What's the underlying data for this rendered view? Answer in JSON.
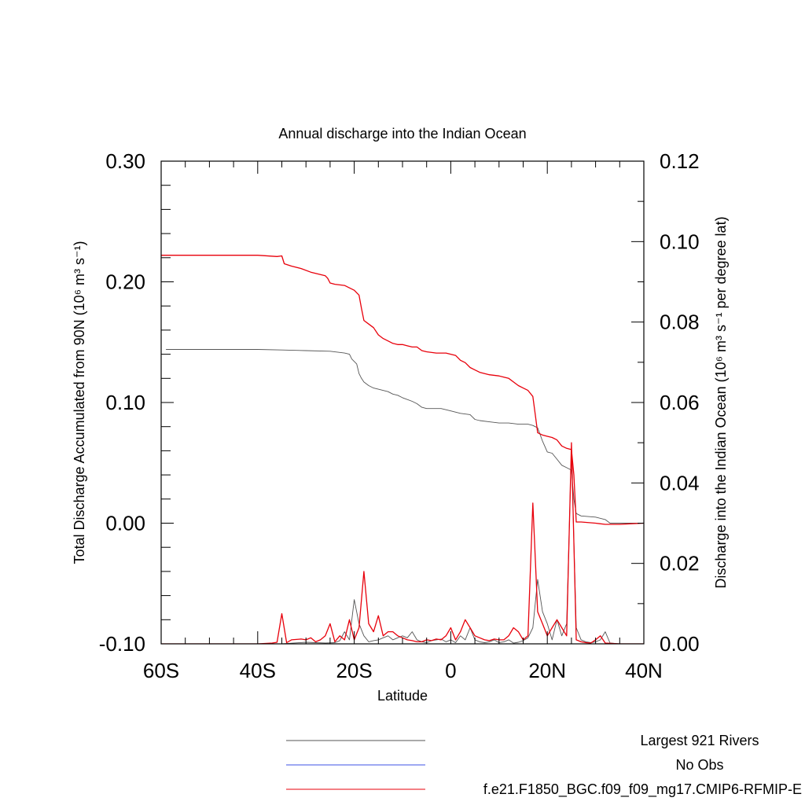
{
  "chart_data": {
    "type": "line",
    "title": "Annual discharge into the Indian Ocean",
    "xlabel": "Latitude",
    "ylabel_left": "Total Discharge Accumulated from 90N (10⁶ m³ s⁻¹)",
    "ylabel_right": "Discharge into the Indian Ocean (10⁶ m³ s⁻¹ per degree lat)",
    "xlim": [
      -60,
      40
    ],
    "ylim_left": [
      -0.1,
      0.3
    ],
    "ylim_right": [
      0.0,
      0.12
    ],
    "x_ticks": [
      {
        "value": -60,
        "label": "60S"
      },
      {
        "value": -40,
        "label": "40S"
      },
      {
        "value": -20,
        "label": "20S"
      },
      {
        "value": 0,
        "label": "0"
      },
      {
        "value": 20,
        "label": "20N"
      },
      {
        "value": 40,
        "label": "40N"
      }
    ],
    "y_ticks_left": [
      {
        "value": -0.1,
        "label": "-0.10"
      },
      {
        "value": 0.0,
        "label": "0.00"
      },
      {
        "value": 0.1,
        "label": "0.10"
      },
      {
        "value": 0.2,
        "label": "0.20"
      },
      {
        "value": 0.3,
        "label": "0.30"
      }
    ],
    "y_ticks_right": [
      {
        "value": 0.0,
        "label": "0.00"
      },
      {
        "value": 0.02,
        "label": "0.02"
      },
      {
        "value": 0.04,
        "label": "0.04"
      },
      {
        "value": 0.06,
        "label": "0.06"
      },
      {
        "value": 0.08,
        "label": "0.08"
      },
      {
        "value": 0.1,
        "label": "0.10"
      },
      {
        "value": 0.12,
        "label": "0.12"
      }
    ],
    "grid": false,
    "legend_position": "bottom-right",
    "series": [
      {
        "name": "Largest 921 Rivers",
        "color": "#555555",
        "axis": "left",
        "kind": "accumulated",
        "points": [
          [
            -59,
            0.144
          ],
          [
            -50,
            0.144
          ],
          [
            -40,
            0.144
          ],
          [
            -35,
            0.1435
          ],
          [
            -30,
            0.143
          ],
          [
            -25,
            0.1425
          ],
          [
            -22,
            0.141
          ],
          [
            -21,
            0.14
          ],
          [
            -20.5,
            0.136
          ],
          [
            -20,
            0.134
          ],
          [
            -19.5,
            0.132
          ],
          [
            -19,
            0.124
          ],
          [
            -18.5,
            0.12
          ],
          [
            -18,
            0.117
          ],
          [
            -17,
            0.114
          ],
          [
            -16,
            0.112
          ],
          [
            -15,
            0.111
          ],
          [
            -13,
            0.109
          ],
          [
            -12,
            0.107
          ],
          [
            -11,
            0.106
          ],
          [
            -10,
            0.104
          ],
          [
            -8,
            0.101
          ],
          [
            -7,
            0.099
          ],
          [
            -6,
            0.096
          ],
          [
            -5,
            0.095
          ],
          [
            -2,
            0.095
          ],
          [
            -1,
            0.094
          ],
          [
            0,
            0.093
          ],
          [
            2,
            0.091
          ],
          [
            4,
            0.09
          ],
          [
            4.5,
            0.088
          ],
          [
            5,
            0.086
          ],
          [
            6,
            0.085
          ],
          [
            8,
            0.084
          ],
          [
            10,
            0.083
          ],
          [
            12,
            0.083
          ],
          [
            14,
            0.082
          ],
          [
            16,
            0.082
          ],
          [
            17,
            0.081
          ],
          [
            18,
            0.079
          ],
          [
            19,
            0.068
          ],
          [
            20,
            0.059
          ],
          [
            21,
            0.058
          ],
          [
            22,
            0.053
          ],
          [
            23,
            0.048
          ],
          [
            24,
            0.046
          ],
          [
            25,
            0.044
          ],
          [
            25.5,
            0.02
          ],
          [
            26,
            0.008
          ],
          [
            27,
            0.006
          ],
          [
            30,
            0.005
          ],
          [
            32,
            0.003
          ],
          [
            33,
            0.0
          ],
          [
            40,
            0.0
          ]
        ]
      },
      {
        "name": "No Obs",
        "color": "#3c50e6",
        "axis": "left",
        "kind": "accumulated",
        "points": []
      },
      {
        "name": "f.e21.F1850_BGC.f09_f09_mg17.CMIP6-RFMIP-E",
        "color": "#e8000b",
        "axis": "left",
        "kind": "accumulated",
        "points": [
          [
            -60,
            0.222
          ],
          [
            -50,
            0.222
          ],
          [
            -40,
            0.222
          ],
          [
            -36,
            0.221
          ],
          [
            -35,
            0.2215
          ],
          [
            -34.5,
            0.215
          ],
          [
            -33,
            0.213
          ],
          [
            -31,
            0.211
          ],
          [
            -29,
            0.208
          ],
          [
            -27,
            0.206
          ],
          [
            -26,
            0.205
          ],
          [
            -25.5,
            0.203
          ],
          [
            -25,
            0.199
          ],
          [
            -24,
            0.198
          ],
          [
            -22,
            0.197
          ],
          [
            -21,
            0.195
          ],
          [
            -20,
            0.193
          ],
          [
            -19,
            0.189
          ],
          [
            -18.5,
            0.178
          ],
          [
            -18,
            0.168
          ],
          [
            -17,
            0.165
          ],
          [
            -16,
            0.162
          ],
          [
            -15,
            0.156
          ],
          [
            -14,
            0.153
          ],
          [
            -13,
            0.151
          ],
          [
            -12,
            0.149
          ],
          [
            -11,
            0.148
          ],
          [
            -10,
            0.148
          ],
          [
            -9,
            0.147
          ],
          [
            -8,
            0.146
          ],
          [
            -7,
            0.146
          ],
          [
            -6,
            0.143
          ],
          [
            -5,
            0.142
          ],
          [
            -3,
            0.141
          ],
          [
            -1,
            0.141
          ],
          [
            0,
            0.14
          ],
          [
            1,
            0.139
          ],
          [
            2,
            0.135
          ],
          [
            3,
            0.133
          ],
          [
            4,
            0.129
          ],
          [
            5,
            0.127
          ],
          [
            6,
            0.125
          ],
          [
            8,
            0.123
          ],
          [
            10,
            0.122
          ],
          [
            11,
            0.121
          ],
          [
            12,
            0.12
          ],
          [
            13,
            0.117
          ],
          [
            14,
            0.114
          ],
          [
            15,
            0.112
          ],
          [
            16,
            0.11
          ],
          [
            17,
            0.105
          ],
          [
            17.5,
            0.09
          ],
          [
            18,
            0.075
          ],
          [
            19,
            0.073
          ],
          [
            20,
            0.072
          ],
          [
            21,
            0.071
          ],
          [
            22,
            0.069
          ],
          [
            23,
            0.064
          ],
          [
            24,
            0.062
          ],
          [
            25,
            0.061
          ],
          [
            25.5,
            0.04
          ],
          [
            26,
            0.001
          ],
          [
            27,
            0.001
          ],
          [
            30,
            0.0
          ],
          [
            32,
            -0.001
          ],
          [
            35,
            -0.001
          ],
          [
            40,
            0.0
          ]
        ]
      },
      {
        "name": "Largest 921 Rivers",
        "color": "#555555",
        "axis": "right",
        "kind": "per-degree",
        "points": [
          [
            -60,
            0.0
          ],
          [
            -40,
            0.0
          ],
          [
            -35,
            0.0
          ],
          [
            -30,
            0.0004
          ],
          [
            -26,
            0.0002
          ],
          [
            -24,
            0.0003
          ],
          [
            -23,
            0.0008
          ],
          [
            -22,
            0.003
          ],
          [
            -21,
            0.001
          ],
          [
            -20,
            0.011
          ],
          [
            -19,
            0.005
          ],
          [
            -18,
            0.002
          ],
          [
            -17,
            0.0005
          ],
          [
            -16,
            0.0008
          ],
          [
            -15,
            0.001
          ],
          [
            -14,
            0.0015
          ],
          [
            -13,
            0.002
          ],
          [
            -12,
            0.001
          ],
          [
            -11,
            0.0015
          ],
          [
            -10,
            0.002
          ],
          [
            -9,
            0.0015
          ],
          [
            -8,
            0.003
          ],
          [
            -7,
            0.001
          ],
          [
            -6,
            0.0005
          ],
          [
            -5,
            0.0003
          ],
          [
            -4,
            0.0008
          ],
          [
            -3,
            0.001
          ],
          [
            -2,
            0.0012
          ],
          [
            -1,
            0.0005
          ],
          [
            0,
            0.001
          ],
          [
            1,
            0.0003
          ],
          [
            2,
            0.002
          ],
          [
            3,
            0.001
          ],
          [
            4,
            0.004
          ],
          [
            5,
            0.001
          ],
          [
            6,
            0.0005
          ],
          [
            7,
            0.0003
          ],
          [
            8,
            0.0005
          ],
          [
            9,
            0.001
          ],
          [
            10,
            0.0003
          ],
          [
            11,
            0.0005
          ],
          [
            12,
            0.001
          ],
          [
            13,
            0.0002
          ],
          [
            14,
            0.0004
          ],
          [
            15,
            0.0008
          ],
          [
            16,
            0.0015
          ],
          [
            17,
            0.004
          ],
          [
            18,
            0.016
          ],
          [
            19,
            0.008
          ],
          [
            20,
            0.005
          ],
          [
            21,
            0.001
          ],
          [
            22,
            0.006
          ],
          [
            23,
            0.002
          ],
          [
            24,
            0.005
          ],
          [
            25,
            0.048
          ],
          [
            26,
            0.004
          ],
          [
            27,
            0.001
          ],
          [
            28,
            0.0005
          ],
          [
            29,
            0.0003
          ],
          [
            30,
            0.0005
          ],
          [
            31,
            0.001
          ],
          [
            32,
            0.003
          ],
          [
            33,
            0.0002
          ],
          [
            35,
            0.0
          ],
          [
            40,
            0.0
          ]
        ]
      },
      {
        "name": "f.e21.F1850_BGC.f09_f09_mg17.CMIP6-RFMIP-E",
        "color": "#e8000b",
        "axis": "right",
        "kind": "per-degree",
        "points": [
          [
            -60,
            0.0
          ],
          [
            -40,
            0.0
          ],
          [
            -37,
            0.0002
          ],
          [
            -36,
            0.0004
          ],
          [
            -35,
            0.0075
          ],
          [
            -34,
            0.0003
          ],
          [
            -33,
            0.001
          ],
          [
            -31,
            0.0012
          ],
          [
            -30,
            0.001
          ],
          [
            -29,
            0.0015
          ],
          [
            -28,
            0.0005
          ],
          [
            -27,
            0.001
          ],
          [
            -26,
            0.002
          ],
          [
            -25,
            0.005
          ],
          [
            -24,
            0.0005
          ],
          [
            -23,
            0.002
          ],
          [
            -22,
            0.001
          ],
          [
            -21,
            0.006
          ],
          [
            -20,
            0.001
          ],
          [
            -19,
            0.004
          ],
          [
            -18,
            0.018
          ],
          [
            -17,
            0.005
          ],
          [
            -16,
            0.003
          ],
          [
            -15,
            0.007
          ],
          [
            -14,
            0.002
          ],
          [
            -13,
            0.003
          ],
          [
            -12,
            0.003
          ],
          [
            -11,
            0.002
          ],
          [
            -10,
            0.0015
          ],
          [
            -9,
            0.001
          ],
          [
            -8,
            0.0008
          ],
          [
            -7,
            0.0005
          ],
          [
            -6,
            0.0005
          ],
          [
            -5,
            0.001
          ],
          [
            -4,
            0.0008
          ],
          [
            -3,
            0.0012
          ],
          [
            -2,
            0.001
          ],
          [
            -1,
            0.002
          ],
          [
            0,
            0.004
          ],
          [
            1,
            0.001
          ],
          [
            2,
            0.003
          ],
          [
            3,
            0.006
          ],
          [
            4,
            0.004
          ],
          [
            5,
            0.002
          ],
          [
            6,
            0.0015
          ],
          [
            7,
            0.001
          ],
          [
            8,
            0.0008
          ],
          [
            9,
            0.0012
          ],
          [
            10,
            0.001
          ],
          [
            11,
            0.001
          ],
          [
            12,
            0.002
          ],
          [
            13,
            0.004
          ],
          [
            14,
            0.003
          ],
          [
            15,
            0.001
          ],
          [
            16,
            0.002
          ],
          [
            17,
            0.035
          ],
          [
            18,
            0.008
          ],
          [
            19,
            0.005
          ],
          [
            20,
            0.002
          ],
          [
            21,
            0.004
          ],
          [
            22,
            0.006
          ],
          [
            23,
            0.004
          ],
          [
            24,
            0.002
          ],
          [
            25,
            0.05
          ],
          [
            26,
            0.001
          ],
          [
            27,
            0.0005
          ],
          [
            28,
            0.0003
          ],
          [
            29,
            0.0002
          ],
          [
            30,
            0.001
          ],
          [
            31,
            0.002
          ],
          [
            32,
            0.0002
          ],
          [
            35,
            0.0
          ],
          [
            40,
            0.0
          ]
        ]
      }
    ]
  }
}
